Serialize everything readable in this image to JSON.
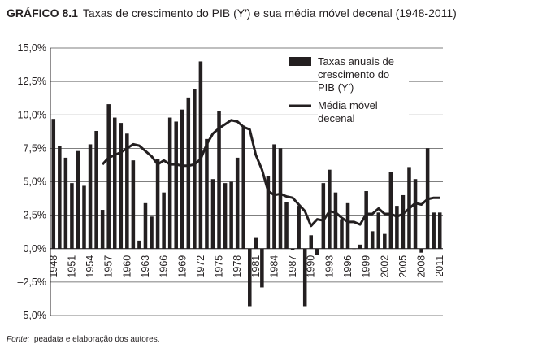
{
  "chart_data": {
    "type": "bar_line",
    "label": "GRÁFICO 8.1",
    "title": "Taxas de crescimento do PIB (Y′) e sua média móvel decenal (1948-2011)",
    "source_label": "Fonte:",
    "source": "Ipeadata e elaboração dos autores.",
    "categories": [
      "1948",
      null,
      null,
      "1951",
      null,
      null,
      "1954",
      null,
      null,
      "1957",
      null,
      null,
      "1960",
      null,
      null,
      "1963",
      null,
      null,
      "1966",
      null,
      null,
      "1969",
      null,
      null,
      "1972",
      null,
      null,
      "1975",
      null,
      null,
      "1978",
      null,
      null,
      "1981",
      null,
      null,
      "1984",
      null,
      null,
      "1987",
      null,
      null,
      "1990",
      null,
      null,
      "1993",
      null,
      null,
      "1996",
      null,
      null,
      "1999",
      null,
      null,
      "2002",
      null,
      null,
      "2005",
      null,
      null,
      "2008",
      null,
      null,
      "2011"
    ],
    "series": [
      {
        "name": "Taxas anuais de crescimento do PIB (Y′)",
        "kind": "bar",
        "color": "#231f20",
        "values": [
          9.7,
          7.7,
          6.8,
          4.9,
          7.3,
          4.7,
          7.8,
          8.8,
          2.9,
          10.8,
          9.8,
          9.4,
          8.6,
          6.6,
          0.6,
          3.4,
          2.4,
          6.7,
          4.2,
          9.8,
          9.5,
          10.4,
          11.3,
          11.9,
          14.0,
          8.2,
          5.2,
          10.3,
          4.9,
          5.0,
          6.8,
          9.2,
          -4.3,
          0.8,
          -2.9,
          5.4,
          7.8,
          7.5,
          3.5,
          -0.1,
          3.2,
          -4.3,
          1.0,
          -0.5,
          4.9,
          5.9,
          4.2,
          2.2,
          3.4,
          0.0,
          0.3,
          4.3,
          1.3,
          2.7,
          1.1,
          5.7,
          3.2,
          4.0,
          6.1,
          5.2,
          -0.3,
          7.5,
          2.7,
          2.7
        ]
      },
      {
        "name": "Média móvel decenal",
        "kind": "line",
        "color": "#231f20",
        "values": [
          null,
          null,
          null,
          null,
          null,
          null,
          null,
          null,
          6.3,
          6.8,
          7.0,
          7.2,
          7.5,
          7.8,
          7.7,
          7.3,
          6.9,
          6.3,
          6.6,
          6.3,
          6.3,
          6.2,
          6.2,
          6.3,
          6.7,
          7.8,
          8.6,
          9.0,
          9.3,
          9.6,
          9.5,
          9.1,
          8.9,
          7.0,
          5.9,
          4.3,
          4.0,
          4.1,
          3.9,
          3.8,
          3.3,
          2.8,
          1.7,
          2.2,
          2.1,
          2.8,
          2.7,
          2.3,
          2.0,
          2.0,
          1.8,
          2.6,
          2.6,
          3.0,
          2.6,
          2.6,
          2.4,
          2.6,
          3.0,
          3.4,
          3.3,
          3.7,
          3.8,
          3.8
        ]
      }
    ],
    "ylim": [
      -5,
      15
    ],
    "yticks": [
      {
        "value": 15,
        "label": "15,0%"
      },
      {
        "value": 12.5,
        "label": "12,5%"
      },
      {
        "value": 10,
        "label": "10,0%"
      },
      {
        "value": 7.5,
        "label": "7,5%"
      },
      {
        "value": 5,
        "label": "5,0%"
      },
      {
        "value": 2.5,
        "label": "2,5%"
      },
      {
        "value": 0,
        "label": "0,0%"
      },
      {
        "value": -2.5,
        "label": "–2,5%"
      },
      {
        "value": -5,
        "label": "–5,0%"
      }
    ],
    "grid": true
  }
}
